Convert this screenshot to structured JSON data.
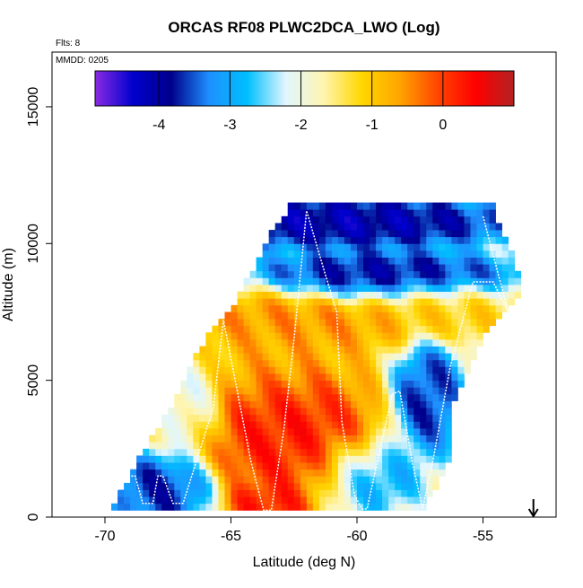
{
  "chart_data": {
    "type": "heatmap",
    "title": "ORCAS RF08 PLWC2DCA_LWO (Log)",
    "xlabel": "Latitude (deg N)",
    "ylabel": "Altitude (m)",
    "xlim": [
      -72.1,
      -52.1
    ],
    "ylim": [
      0,
      17000
    ],
    "x_ticks": [
      -70,
      -65,
      -60,
      -55
    ],
    "y_ticks": [
      0,
      5000,
      10000,
      15000
    ],
    "notes": [
      "Flts: 8",
      "MMDD: 0205"
    ],
    "arrow_marker": {
      "x": -53.0,
      "direction": "down"
    },
    "grid": false,
    "colorbar": {
      "placement": "top-inside",
      "min": -4.9,
      "max": 1.0,
      "ticks": [
        -4,
        -3,
        -2,
        -1,
        0
      ],
      "colors": [
        "#8a2be2",
        "#0000cd",
        "#00008b",
        "#1e90ff",
        "#00bfff",
        "#e0f6ff",
        "#fff5b0",
        "#ffd700",
        "#ffa500",
        "#ff4500",
        "#ff0000",
        "#b22222"
      ]
    },
    "cell_size": {
      "dlat": 0.25,
      "dalt": 250
    },
    "region": {
      "bottom_alt": 250,
      "top_alt": 11500,
      "left_lat": {
        "0": -70.0,
        "1000": -69.2,
        "2500": -68.3,
        "4000": -67.3,
        "5500": -66.5,
        "7000": -65.6,
        "8000": -64.6,
        "9500": -63.8,
        "10500": -63.3,
        "11500": -62.4
      },
      "right_lat": {
        "0": -57.6,
        "2000": -56.5,
        "4000": -56.4,
        "5500": -55.6,
        "7000": -54.8,
        "8000": -53.7,
        "9000": -53.7,
        "10500": -54.4,
        "11500": -54.7
      }
    },
    "value_field": [
      {
        "lat": -63.0,
        "alt": 3500,
        "value": 0.5,
        "spread_lat": 2.6,
        "spread_alt": 1700
      },
      {
        "lat": -62.0,
        "alt": 2000,
        "value": 0.3,
        "spread_lat": 2.0,
        "spread_alt": 1200
      },
      {
        "lat": -63.5,
        "alt": 500,
        "value": 0.5,
        "spread_lat": 1.3,
        "spread_alt": 600
      },
      {
        "lat": -62.8,
        "alt": 7200,
        "value": -0.3,
        "spread_lat": 4.0,
        "spread_alt": 900
      },
      {
        "lat": -64.0,
        "alt": 6000,
        "value": -0.8,
        "spread_lat": 2.8,
        "spread_alt": 1500
      },
      {
        "lat": -60.8,
        "alt": 10800,
        "value": -4.5,
        "spread_lat": 5.5,
        "spread_alt": 700
      },
      {
        "lat": -59.0,
        "alt": 8800,
        "value": -4.3,
        "spread_lat": 4.0,
        "spread_alt": 700
      },
      {
        "lat": -57.2,
        "alt": 4400,
        "value": -4.0,
        "spread_lat": 1.0,
        "spread_alt": 1500
      },
      {
        "lat": -59.8,
        "alt": 1500,
        "value": -3.5,
        "spread_lat": 1.6,
        "spread_alt": 1000
      },
      {
        "lat": -67.8,
        "alt": 1000,
        "value": -4.0,
        "spread_lat": 1.5,
        "spread_alt": 1000
      },
      {
        "lat": -66.5,
        "alt": 4500,
        "value": -2.5,
        "spread_lat": 1.0,
        "spread_alt": 1500
      },
      {
        "lat": -56.8,
        "alt": 7600,
        "value": -1.0,
        "spread_lat": 2.5,
        "spread_alt": 800
      }
    ],
    "flight_track": [
      [
        -69.9,
        500
      ],
      [
        -69.1,
        1500
      ],
      [
        -68.8,
        1500
      ],
      [
        -68.5,
        500
      ],
      [
        -68.1,
        500
      ],
      [
        -67.9,
        1500
      ],
      [
        -67.7,
        1500
      ],
      [
        -67.3,
        500
      ],
      [
        -66.9,
        500
      ],
      [
        -65.7,
        4000
      ],
      [
        -65.3,
        7200
      ],
      [
        -64.2,
        2000
      ],
      [
        -63.7,
        250
      ],
      [
        -63.4,
        250
      ],
      [
        -62.9,
        3200
      ],
      [
        -62.5,
        6500
      ],
      [
        -62.0,
        11200
      ],
      [
        -61.3,
        9000
      ],
      [
        -60.8,
        7500
      ],
      [
        -60.6,
        3500
      ],
      [
        -60.1,
        800
      ],
      [
        -59.8,
        300
      ],
      [
        -59.6,
        300
      ],
      [
        -58.6,
        4500
      ],
      [
        -58.3,
        4600
      ],
      [
        -57.8,
        2000
      ],
      [
        -57.4,
        300
      ],
      [
        -57.0,
        2000
      ],
      [
        -56.3,
        5500
      ],
      [
        -55.4,
        8600
      ],
      [
        -54.6,
        8600
      ],
      [
        -54.0,
        7500
      ],
      [
        -55.0,
        11000
      ]
    ]
  }
}
